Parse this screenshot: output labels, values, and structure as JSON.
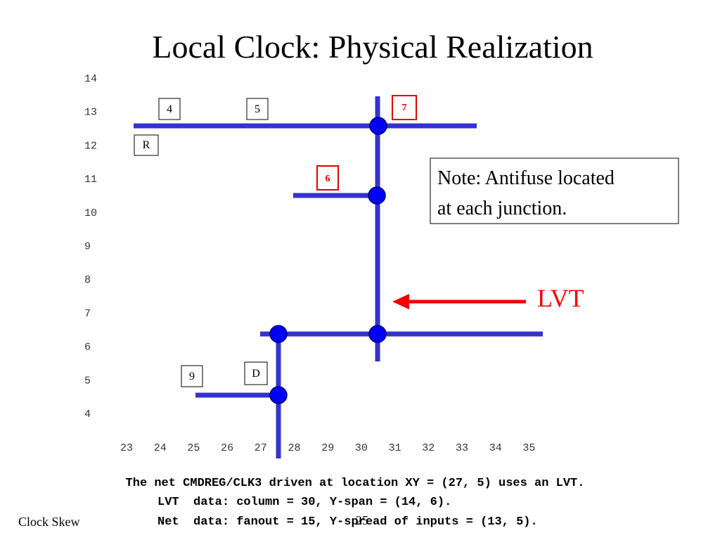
{
  "title": "Local Clock: Physical Realization",
  "y_labels": [
    "14",
    "13",
    "12",
    "11",
    "10",
    "9",
    "8",
    "7",
    "6",
    "5",
    "4"
  ],
  "x_labels": [
    "23",
    "24",
    "25",
    "26",
    "27",
    "28",
    "29",
    "30",
    "31",
    "32",
    "33",
    "34",
    "35"
  ],
  "boxes": {
    "b4": "4",
    "b5": "5",
    "b7": "7",
    "bR": "R",
    "b6": "6",
    "b9": "9",
    "bD": "D"
  },
  "note": [
    "Note: Antifuse located",
    "at each junction."
  ],
  "lvt": "LVT",
  "caption": [
    "The net CMDREG/CLK3 driven at location XY = (27, 5) uses an LVT.",
    "LVT  data: column = 30, Y-span = (14, 6).",
    "Net  data: fanout = 15, Y-spread of inputs = (13, 5)."
  ],
  "footer": "Clock Skew",
  "page_number": "25"
}
